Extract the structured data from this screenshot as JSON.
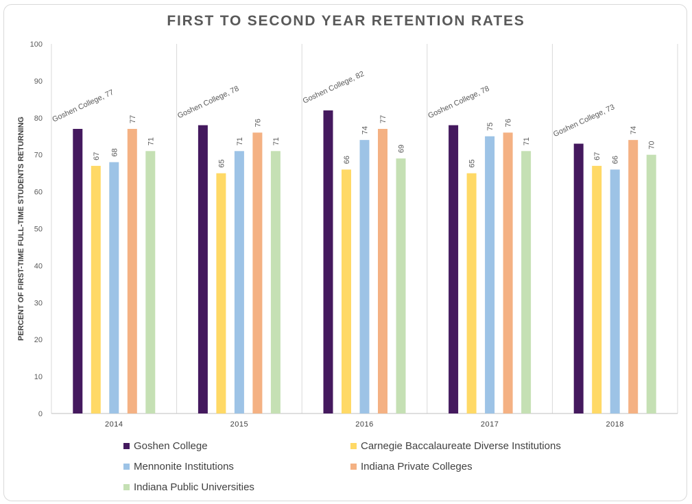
{
  "chart_data": {
    "type": "bar",
    "title": "FIRST TO SECOND YEAR RETENTION RATES",
    "xlabel": "",
    "ylabel": "PERCENT OF FIRST-TIME FULL-TIME STUDENTS RETURNING",
    "ylim": [
      0,
      100
    ],
    "yticks": [
      "0",
      "10",
      "20",
      "30",
      "40",
      "50",
      "60",
      "70",
      "80",
      "90",
      "100"
    ],
    "grid": "vertical separators between categories",
    "legend_position": "bottom",
    "categories": [
      "2014",
      "2015",
      "2016",
      "2017",
      "2018"
    ],
    "series": [
      {
        "name": "Goshen College",
        "color": "#44195e",
        "values": [
          77,
          78,
          82,
          78,
          73
        ],
        "data_labels": [
          "Goshen College, 77",
          "Goshen College, 78",
          "Goshen College, 82",
          "Goshen College, 78",
          "Goshen College, 73"
        ]
      },
      {
        "name": "Carnegie Baccalaureate Diverse Institutions",
        "color": "#ffd966",
        "values": [
          67,
          65,
          66,
          65,
          67
        ],
        "data_labels": [
          "67",
          "65",
          "66",
          "65",
          "67"
        ]
      },
      {
        "name": "Mennonite Institutions",
        "color": "#9dc3e6",
        "values": [
          68,
          71,
          74,
          75,
          66
        ],
        "data_labels": [
          "68",
          "71",
          "74",
          "75",
          "66"
        ]
      },
      {
        "name": "Indiana Private Colleges",
        "color": "#f4b183",
        "values": [
          77,
          76,
          77,
          76,
          74
        ],
        "data_labels": [
          "77",
          "76",
          "77",
          "76",
          "74"
        ]
      },
      {
        "name": "Indiana Public Universities",
        "color": "#c5e0b4",
        "values": [
          71,
          71,
          69,
          71,
          70
        ],
        "data_labels": [
          "71",
          "71",
          "69",
          "71",
          "70"
        ]
      }
    ]
  }
}
